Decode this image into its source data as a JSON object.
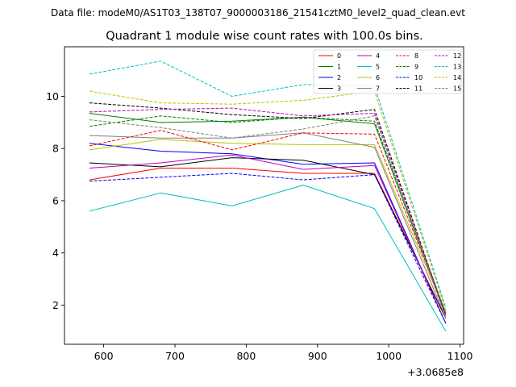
{
  "chart_data": {
    "type": "line",
    "suptitle": "Data file: modeM0/AS1T03_138T07_9000003186_21541cztM0_level2_quad_clean.evt",
    "title": "Quadrant 1 module wise count rates with 100.0s bins.",
    "xlabel": "",
    "ylabel": "",
    "x_offset_label": "+3.0685e8",
    "xlim": [
      545,
      1105
    ],
    "ylim": [
      0.5,
      11.9
    ],
    "xticks": [
      600,
      700,
      800,
      900,
      1000,
      1100
    ],
    "yticks": [
      2,
      4,
      6,
      8,
      10
    ],
    "x": [
      580,
      680,
      780,
      880,
      980,
      1080
    ],
    "legend_position": "top-right",
    "series": [
      {
        "name": "0",
        "color": "#ff0000",
        "dash": "solid",
        "values": [
          6.8,
          7.25,
          7.25,
          7.05,
          7.05,
          1.5
        ]
      },
      {
        "name": "1",
        "color": "#008000",
        "dash": "solid",
        "values": [
          9.35,
          9.0,
          9.05,
          9.2,
          8.95,
          1.6
        ]
      },
      {
        "name": "2",
        "color": "#0000ff",
        "dash": "solid",
        "values": [
          8.2,
          7.9,
          7.8,
          7.4,
          7.45,
          1.3
        ]
      },
      {
        "name": "3",
        "color": "#000000",
        "dash": "solid",
        "values": [
          7.45,
          7.3,
          7.65,
          7.55,
          7.0,
          1.5
        ]
      },
      {
        "name": "4",
        "color": "#bf00bf",
        "dash": "solid",
        "values": [
          7.25,
          7.45,
          7.75,
          7.2,
          7.35,
          1.3
        ]
      },
      {
        "name": "5",
        "color": "#00bfbf",
        "dash": "solid",
        "values": [
          5.6,
          6.3,
          5.8,
          6.6,
          5.7,
          1.0
        ]
      },
      {
        "name": "6",
        "color": "#bfbf00",
        "dash": "solid",
        "values": [
          7.95,
          8.35,
          8.2,
          8.15,
          8.15,
          1.7
        ]
      },
      {
        "name": "7",
        "color": "#808080",
        "dash": "solid",
        "values": [
          8.5,
          8.4,
          8.4,
          8.6,
          8.05,
          1.5
        ]
      },
      {
        "name": "8",
        "color": "#ff0000",
        "dash": "dashed",
        "values": [
          8.1,
          8.7,
          7.95,
          8.6,
          8.55,
          1.7
        ]
      },
      {
        "name": "9",
        "color": "#008000",
        "dash": "dashed",
        "values": [
          8.85,
          9.25,
          9.0,
          9.2,
          9.05,
          1.7
        ]
      },
      {
        "name": "10",
        "color": "#0000ff",
        "dash": "dashed",
        "values": [
          6.75,
          6.9,
          7.05,
          6.8,
          7.0,
          1.3
        ]
      },
      {
        "name": "11",
        "color": "#000000",
        "dash": "dashed",
        "values": [
          9.75,
          9.55,
          9.3,
          9.15,
          9.5,
          1.6
        ]
      },
      {
        "name": "12",
        "color": "#bf00bf",
        "dash": "dashed",
        "values": [
          9.4,
          9.5,
          9.55,
          9.25,
          9.35,
          1.6
        ]
      },
      {
        "name": "13",
        "color": "#00bfbf",
        "dash": "dashed",
        "values": [
          10.85,
          11.35,
          10.0,
          10.45,
          10.4,
          1.9
        ]
      },
      {
        "name": "14",
        "color": "#bfbf00",
        "dash": "dashed",
        "values": [
          10.2,
          9.75,
          9.7,
          9.85,
          10.2,
          1.8
        ]
      },
      {
        "name": "15",
        "color": "#808080",
        "dash": "dashed",
        "values": [
          9.1,
          8.8,
          8.4,
          8.75,
          9.25,
          1.5
        ]
      }
    ]
  }
}
